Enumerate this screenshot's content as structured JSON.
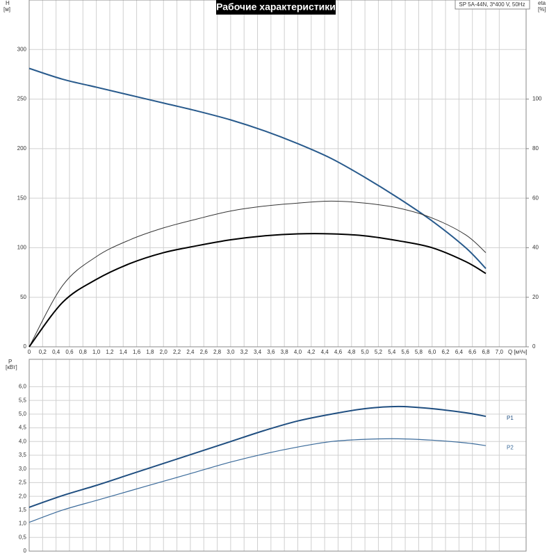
{
  "chart_data": [
    {
      "type": "line",
      "title": "Рабочие характеристики",
      "subtitle": "SP 5A-44N, 3*400 V, 50Hz",
      "y_label": "H",
      "y_unit": "[м]",
      "y2_label": "eta",
      "y2_unit": "[%]",
      "x_label": "Q [м³/ч]",
      "xlim": [
        0,
        7.4
      ],
      "xticks": [
        0,
        {
          "value": 0.2,
          "label": "0,2"
        },
        {
          "value": 0.4,
          "label": "0,4"
        },
        {
          "value": 0.6,
          "label": "0,6"
        },
        {
          "value": 0.8,
          "label": "0,8"
        },
        {
          "value": 1.0,
          "label": "1,0"
        },
        {
          "value": 1.2,
          "label": "1,2"
        },
        {
          "value": 1.4,
          "label": "1,4"
        },
        {
          "value": 1.6,
          "label": "1,6"
        },
        {
          "value": 1.8,
          "label": "1,8"
        },
        {
          "value": 2.0,
          "label": "2,0"
        },
        {
          "value": 2.2,
          "label": "2,2"
        },
        {
          "value": 2.4,
          "label": "2,4"
        },
        {
          "value": 2.6,
          "label": "2,6"
        },
        {
          "value": 2.8,
          "label": "2,8"
        },
        {
          "value": 3.0,
          "label": "3,0"
        },
        {
          "value": 3.2,
          "label": "3,2"
        },
        {
          "value": 3.4,
          "label": "3,4"
        },
        {
          "value": 3.6,
          "label": "3,6"
        },
        {
          "value": 3.8,
          "label": "3,8"
        },
        {
          "value": 4.0,
          "label": "4,0"
        },
        {
          "value": 4.2,
          "label": "4,2"
        },
        {
          "value": 4.4,
          "label": "4,4"
        },
        {
          "value": 4.6,
          "label": "4,6"
        },
        {
          "value": 4.8,
          "label": "4,8"
        },
        {
          "value": 5.0,
          "label": "5,0"
        },
        {
          "value": 5.2,
          "label": "5,2"
        },
        {
          "value": 5.4,
          "label": "5,4"
        },
        {
          "value": 5.6,
          "label": "5,6"
        },
        {
          "value": 5.8,
          "label": "5,8"
        },
        {
          "value": 6.0,
          "label": "6,0"
        },
        {
          "value": 6.2,
          "label": "6,2"
        },
        {
          "value": 6.4,
          "label": "6,4"
        },
        {
          "value": 6.6,
          "label": "6,6"
        },
        {
          "value": 6.8,
          "label": "6,8"
        },
        {
          "value": 7.0,
          "label": "7,0"
        }
      ],
      "ylim": [
        0,
        350
      ],
      "yticks": [
        0,
        50,
        100,
        150,
        200,
        250,
        300
      ],
      "y2lim": [
        0,
        140
      ],
      "y2ticks": [
        0,
        20,
        40,
        60,
        80,
        100
      ],
      "grid": true,
      "x": [
        0,
        0.5,
        1.0,
        1.5,
        2.0,
        2.5,
        3.0,
        3.5,
        4.0,
        4.5,
        5.0,
        5.5,
        6.0,
        6.5,
        6.8
      ],
      "series": [
        {
          "color": "#285a8c",
          "width": 2,
          "values": [
            281,
            270,
            262,
            254,
            246,
            238,
            229,
            218,
            205,
            190,
            171,
            150,
            127,
            100,
            79
          ]
        },
        {
          "color": "#333333",
          "width": 1,
          "axis": "y2",
          "values": [
            0,
            24.8,
            36.4,
            43.2,
            48,
            51.6,
            54.8,
            56.8,
            58,
            58.8,
            58,
            56,
            52,
            45.2,
            38
          ]
        },
        {
          "color": "#000000",
          "width": 2,
          "axis": "y2",
          "values": [
            0,
            18,
            27.2,
            33.6,
            38,
            40.8,
            43.2,
            44.8,
            45.6,
            45.6,
            44.8,
            42.8,
            40,
            34.4,
            29.6
          ]
        }
      ]
    },
    {
      "type": "line",
      "y_label": "P",
      "y_unit": "[кВт]",
      "xlim": [
        0,
        7.4
      ],
      "ylim": [
        0,
        7.0
      ],
      "yticks": [
        0,
        {
          "value": 0.5,
          "label": "0,5"
        },
        {
          "value": 1.0,
          "label": "1,0"
        },
        {
          "value": 1.5,
          "label": "1,5"
        },
        {
          "value": 2.0,
          "label": "2,0"
        },
        {
          "value": 2.5,
          "label": "2,5"
        },
        {
          "value": 3.0,
          "label": "3,0"
        },
        {
          "value": 3.5,
          "label": "3,5"
        },
        {
          "value": 4.0,
          "label": "4,0"
        },
        {
          "value": 4.5,
          "label": "4,5"
        },
        {
          "value": 5.0,
          "label": "5,0"
        },
        {
          "value": 5.5,
          "label": "5,5"
        },
        {
          "value": 6.0,
          "label": "6,0"
        }
      ],
      "grid": true,
      "x": [
        0,
        0.5,
        1.0,
        1.5,
        2.0,
        2.5,
        3.0,
        3.5,
        4.0,
        4.5,
        5.0,
        5.5,
        6.0,
        6.5,
        6.8
      ],
      "series": [
        {
          "name": "P1",
          "color": "#1f4e80",
          "width": 2,
          "values": [
            1.6,
            2.03,
            2.4,
            2.8,
            3.2,
            3.6,
            4.0,
            4.4,
            4.75,
            5.0,
            5.2,
            5.28,
            5.2,
            5.05,
            4.92
          ]
        },
        {
          "name": "P2",
          "color": "#3a6a9a",
          "width": 1.2,
          "values": [
            1.05,
            1.5,
            1.85,
            2.2,
            2.55,
            2.9,
            3.25,
            3.55,
            3.8,
            4.0,
            4.08,
            4.1,
            4.05,
            3.95,
            3.85
          ]
        }
      ]
    }
  ]
}
